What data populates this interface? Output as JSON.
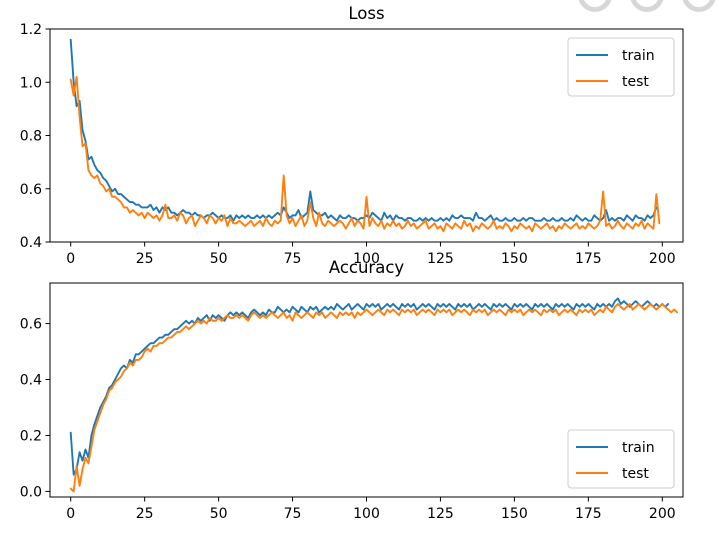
{
  "chart_data": [
    {
      "type": "line",
      "title": "Loss",
      "xlabel": "",
      "ylabel": "",
      "xlim": [
        -7,
        207
      ],
      "ylim": [
        0.4,
        1.2
      ],
      "x_ticks": [
        0,
        25,
        50,
        75,
        100,
        125,
        150,
        175,
        200
      ],
      "y_ticks": [
        0.4,
        0.6,
        0.8,
        1.0,
        1.2
      ],
      "grid": false,
      "legend_position": "upper right",
      "series": [
        {
          "name": "train",
          "color": "#1f77b4",
          "x_start": 0,
          "x_step": 1,
          "values": [
            1.16,
            1.0,
            0.91,
            0.93,
            0.82,
            0.78,
            0.71,
            0.72,
            0.69,
            0.67,
            0.66,
            0.64,
            0.63,
            0.61,
            0.59,
            0.6,
            0.58,
            0.58,
            0.57,
            0.56,
            0.55,
            0.55,
            0.54,
            0.54,
            0.53,
            0.53,
            0.53,
            0.54,
            0.52,
            0.53,
            0.51,
            0.53,
            0.52,
            0.53,
            0.51,
            0.51,
            0.5,
            0.51,
            0.52,
            0.51,
            0.51,
            0.5,
            0.51,
            0.5,
            0.5,
            0.49,
            0.5,
            0.5,
            0.51,
            0.5,
            0.49,
            0.5,
            0.49,
            0.49,
            0.5,
            0.48,
            0.5,
            0.49,
            0.5,
            0.49,
            0.5,
            0.49,
            0.49,
            0.5,
            0.49,
            0.5,
            0.49,
            0.5,
            0.49,
            0.5,
            0.51,
            0.5,
            0.53,
            0.51,
            0.49,
            0.5,
            0.5,
            0.52,
            0.49,
            0.5,
            0.51,
            0.59,
            0.52,
            0.51,
            0.5,
            0.5,
            0.51,
            0.49,
            0.5,
            0.49,
            0.48,
            0.5,
            0.49,
            0.49,
            0.5,
            0.49,
            0.49,
            0.48,
            0.49,
            0.49,
            0.5,
            0.49,
            0.51,
            0.5,
            0.49,
            0.48,
            0.51,
            0.49,
            0.5,
            0.48,
            0.5,
            0.49,
            0.49,
            0.48,
            0.49,
            0.49,
            0.48,
            0.48,
            0.49,
            0.48,
            0.49,
            0.48,
            0.49,
            0.48,
            0.48,
            0.49,
            0.48,
            0.49,
            0.48,
            0.5,
            0.49,
            0.49,
            0.5,
            0.49,
            0.49,
            0.49,
            0.48,
            0.51,
            0.49,
            0.49,
            0.48,
            0.49,
            0.5,
            0.48,
            0.49,
            0.48,
            0.48,
            0.49,
            0.48,
            0.48,
            0.49,
            0.48,
            0.48,
            0.49,
            0.48,
            0.49,
            0.49,
            0.48,
            0.48,
            0.48,
            0.49,
            0.48,
            0.48,
            0.49,
            0.48,
            0.48,
            0.49,
            0.48,
            0.48,
            0.49,
            0.48,
            0.5,
            0.49,
            0.48,
            0.49,
            0.48,
            0.48,
            0.5,
            0.49,
            0.48,
            0.49,
            0.52,
            0.48,
            0.49,
            0.48,
            0.49,
            0.49,
            0.48,
            0.5,
            0.49,
            0.48,
            0.5,
            0.49,
            0.49,
            0.48,
            0.5,
            0.49,
            0.5,
            0.53
          ]
        },
        {
          "name": "test",
          "color": "#ff7f0e",
          "x_start": 0,
          "x_step": 1,
          "values": [
            1.01,
            0.95,
            1.02,
            0.87,
            0.76,
            0.77,
            0.67,
            0.65,
            0.64,
            0.65,
            0.62,
            0.61,
            0.59,
            0.6,
            0.57,
            0.57,
            0.56,
            0.55,
            0.53,
            0.53,
            0.51,
            0.52,
            0.51,
            0.5,
            0.51,
            0.49,
            0.51,
            0.5,
            0.49,
            0.5,
            0.48,
            0.5,
            0.54,
            0.49,
            0.49,
            0.5,
            0.48,
            0.51,
            0.5,
            0.47,
            0.49,
            0.5,
            0.46,
            0.48,
            0.5,
            0.49,
            0.47,
            0.5,
            0.49,
            0.47,
            0.49,
            0.48,
            0.5,
            0.46,
            0.49,
            0.47,
            0.47,
            0.48,
            0.47,
            0.46,
            0.47,
            0.48,
            0.46,
            0.47,
            0.48,
            0.46,
            0.49,
            0.47,
            0.46,
            0.48,
            0.47,
            0.48,
            0.65,
            0.5,
            0.47,
            0.49,
            0.46,
            0.48,
            0.5,
            0.46,
            0.48,
            0.55,
            0.49,
            0.46,
            0.51,
            0.47,
            0.46,
            0.48,
            0.47,
            0.46,
            0.47,
            0.48,
            0.47,
            0.45,
            0.47,
            0.49,
            0.46,
            0.48,
            0.47,
            0.45,
            0.57,
            0.46,
            0.49,
            0.47,
            0.46,
            0.48,
            0.45,
            0.47,
            0.46,
            0.48,
            0.46,
            0.47,
            0.45,
            0.46,
            0.48,
            0.46,
            0.47,
            0.45,
            0.46,
            0.47,
            0.48,
            0.45,
            0.46,
            0.47,
            0.45,
            0.46,
            0.44,
            0.47,
            0.46,
            0.45,
            0.47,
            0.46,
            0.45,
            0.48,
            0.46,
            0.47,
            0.44,
            0.46,
            0.45,
            0.47,
            0.46,
            0.45,
            0.46,
            0.48,
            0.45,
            0.46,
            0.45,
            0.47,
            0.46,
            0.44,
            0.46,
            0.45,
            0.47,
            0.46,
            0.45,
            0.46,
            0.44,
            0.47,
            0.46,
            0.45,
            0.46,
            0.47,
            0.45,
            0.46,
            0.44,
            0.46,
            0.45,
            0.47,
            0.46,
            0.45,
            0.46,
            0.47,
            0.45,
            0.46,
            0.45,
            0.47,
            0.46,
            0.45,
            0.46,
            0.48,
            0.59,
            0.46,
            0.47,
            0.45,
            0.46,
            0.48,
            0.46,
            0.45,
            0.47,
            0.46,
            0.45,
            0.47,
            0.46,
            0.48,
            0.45,
            0.47,
            0.46,
            0.45,
            0.58,
            0.47
          ]
        }
      ]
    },
    {
      "type": "line",
      "title": "Accuracy",
      "xlabel": "",
      "ylabel": "",
      "xlim": [
        -7,
        207
      ],
      "ylim": [
        -0.02,
        0.745
      ],
      "x_ticks": [
        0,
        25,
        50,
        75,
        100,
        125,
        150,
        175,
        200
      ],
      "y_ticks": [
        0.0,
        0.2,
        0.4,
        0.6
      ],
      "grid": false,
      "legend_position": "lower right",
      "series": [
        {
          "name": "train",
          "color": "#1f77b4",
          "x_start": 0,
          "x_step": 1,
          "values": [
            0.21,
            0.06,
            0.08,
            0.14,
            0.11,
            0.15,
            0.12,
            0.2,
            0.24,
            0.27,
            0.3,
            0.32,
            0.34,
            0.37,
            0.38,
            0.4,
            0.42,
            0.44,
            0.45,
            0.44,
            0.47,
            0.46,
            0.49,
            0.49,
            0.5,
            0.51,
            0.52,
            0.53,
            0.53,
            0.54,
            0.55,
            0.55,
            0.56,
            0.56,
            0.57,
            0.58,
            0.58,
            0.59,
            0.6,
            0.61,
            0.6,
            0.61,
            0.6,
            0.62,
            0.61,
            0.62,
            0.63,
            0.61,
            0.63,
            0.62,
            0.63,
            0.62,
            0.61,
            0.63,
            0.64,
            0.63,
            0.64,
            0.63,
            0.64,
            0.63,
            0.62,
            0.64,
            0.65,
            0.64,
            0.63,
            0.64,
            0.63,
            0.65,
            0.64,
            0.64,
            0.66,
            0.65,
            0.64,
            0.65,
            0.64,
            0.66,
            0.65,
            0.64,
            0.66,
            0.65,
            0.64,
            0.66,
            0.65,
            0.66,
            0.64,
            0.65,
            0.66,
            0.65,
            0.66,
            0.65,
            0.67,
            0.66,
            0.65,
            0.66,
            0.67,
            0.65,
            0.66,
            0.67,
            0.66,
            0.65,
            0.67,
            0.66,
            0.67,
            0.66,
            0.67,
            0.65,
            0.66,
            0.67,
            0.66,
            0.67,
            0.66,
            0.65,
            0.67,
            0.66,
            0.67,
            0.66,
            0.67,
            0.65,
            0.66,
            0.67,
            0.66,
            0.67,
            0.66,
            0.65,
            0.67,
            0.66,
            0.67,
            0.66,
            0.67,
            0.66,
            0.65,
            0.67,
            0.66,
            0.67,
            0.66,
            0.67,
            0.65,
            0.66,
            0.67,
            0.66,
            0.67,
            0.66,
            0.65,
            0.67,
            0.66,
            0.67,
            0.66,
            0.67,
            0.66,
            0.65,
            0.67,
            0.66,
            0.67,
            0.66,
            0.67,
            0.66,
            0.65,
            0.67,
            0.66,
            0.67,
            0.66,
            0.67,
            0.66,
            0.65,
            0.67,
            0.66,
            0.67,
            0.66,
            0.67,
            0.66,
            0.65,
            0.67,
            0.66,
            0.67,
            0.66,
            0.67,
            0.66,
            0.65,
            0.67,
            0.66,
            0.67,
            0.66,
            0.67,
            0.66,
            0.68,
            0.69,
            0.67,
            0.68,
            0.67,
            0.66,
            0.67,
            0.68,
            0.67,
            0.66,
            0.67,
            0.68,
            0.67,
            0.66,
            0.67,
            0.66,
            0.67,
            0.66,
            0.67
          ]
        },
        {
          "name": "test",
          "color": "#ff7f0e",
          "x_start": 0,
          "x_step": 1,
          "values": [
            0.01,
            0.0,
            0.09,
            0.02,
            0.08,
            0.12,
            0.1,
            0.16,
            0.22,
            0.25,
            0.28,
            0.31,
            0.33,
            0.36,
            0.37,
            0.39,
            0.4,
            0.41,
            0.43,
            0.44,
            0.46,
            0.45,
            0.47,
            0.47,
            0.48,
            0.5,
            0.51,
            0.5,
            0.52,
            0.52,
            0.53,
            0.53,
            0.54,
            0.55,
            0.55,
            0.56,
            0.57,
            0.57,
            0.58,
            0.59,
            0.58,
            0.59,
            0.6,
            0.61,
            0.6,
            0.61,
            0.6,
            0.62,
            0.61,
            0.61,
            0.62,
            0.61,
            0.62,
            0.63,
            0.62,
            0.62,
            0.63,
            0.62,
            0.63,
            0.62,
            0.61,
            0.63,
            0.64,
            0.63,
            0.62,
            0.63,
            0.62,
            0.63,
            0.64,
            0.63,
            0.62,
            0.63,
            0.64,
            0.62,
            0.63,
            0.61,
            0.64,
            0.63,
            0.62,
            0.63,
            0.64,
            0.63,
            0.62,
            0.64,
            0.63,
            0.64,
            0.62,
            0.63,
            0.64,
            0.63,
            0.62,
            0.64,
            0.63,
            0.64,
            0.63,
            0.64,
            0.62,
            0.64,
            0.63,
            0.64,
            0.65,
            0.64,
            0.63,
            0.64,
            0.65,
            0.64,
            0.63,
            0.65,
            0.64,
            0.65,
            0.64,
            0.63,
            0.65,
            0.64,
            0.65,
            0.64,
            0.65,
            0.63,
            0.64,
            0.65,
            0.64,
            0.65,
            0.64,
            0.63,
            0.65,
            0.64,
            0.65,
            0.64,
            0.65,
            0.63,
            0.64,
            0.65,
            0.64,
            0.65,
            0.64,
            0.63,
            0.65,
            0.64,
            0.65,
            0.64,
            0.65,
            0.63,
            0.64,
            0.65,
            0.64,
            0.65,
            0.64,
            0.63,
            0.65,
            0.64,
            0.65,
            0.64,
            0.65,
            0.63,
            0.64,
            0.65,
            0.64,
            0.65,
            0.64,
            0.63,
            0.65,
            0.64,
            0.65,
            0.64,
            0.65,
            0.63,
            0.64,
            0.65,
            0.64,
            0.65,
            0.64,
            0.63,
            0.65,
            0.64,
            0.65,
            0.64,
            0.65,
            0.63,
            0.64,
            0.65,
            0.64,
            0.66,
            0.65,
            0.64,
            0.66,
            0.67,
            0.66,
            0.65,
            0.66,
            0.67,
            0.65,
            0.66,
            0.67,
            0.66,
            0.65,
            0.66,
            0.67,
            0.66,
            0.65,
            0.66,
            0.67,
            0.66,
            0.65,
            0.64,
            0.65,
            0.64
          ]
        }
      ]
    }
  ]
}
